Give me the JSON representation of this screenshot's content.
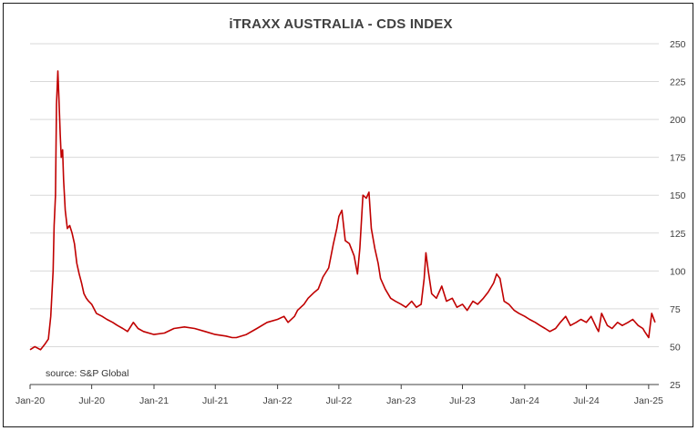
{
  "chart_data": {
    "type": "line",
    "title": "iTRAXX AUSTRALIA - CDS INDEX",
    "annotation": "source: S&P Global",
    "ylim": [
      25,
      250
    ],
    "yticks": [
      25,
      50,
      75,
      100,
      125,
      150,
      175,
      200,
      225,
      250
    ],
    "y_axis_position": "right",
    "grid": "horizontal",
    "xlim": [
      "2020-01-01",
      "2025-01-31"
    ],
    "xticks": [
      {
        "date": "2020-01-01",
        "label": "Jan-20"
      },
      {
        "date": "2020-07-01",
        "label": "Jul-20"
      },
      {
        "date": "2021-01-01",
        "label": "Jan-21"
      },
      {
        "date": "2021-07-01",
        "label": "Jul-21"
      },
      {
        "date": "2022-01-01",
        "label": "Jan-22"
      },
      {
        "date": "2022-07-01",
        "label": "Jul-22"
      },
      {
        "date": "2023-01-01",
        "label": "Jan-23"
      },
      {
        "date": "2023-07-01",
        "label": "Jul-23"
      },
      {
        "date": "2024-01-01",
        "label": "Jan-24"
      },
      {
        "date": "2024-07-01",
        "label": "Jul-24"
      },
      {
        "date": "2025-01-01",
        "label": "Jan-25"
      }
    ],
    "colors": {
      "line": "#c00000",
      "grid": "#d9d9d9",
      "axis": "#404040"
    },
    "series": [
      {
        "x": [
          "2020-01-01",
          "2020-01-15",
          "2020-02-01",
          "2020-02-15",
          "2020-02-24",
          "2020-03-02",
          "2020-03-09",
          "2020-03-12",
          "2020-03-16",
          "2020-03-19",
          "2020-03-23",
          "2020-03-26",
          "2020-03-30",
          "2020-04-02",
          "2020-04-06",
          "2020-04-09",
          "2020-04-14",
          "2020-04-20",
          "2020-04-27",
          "2020-05-04",
          "2020-05-11",
          "2020-05-18",
          "2020-05-25",
          "2020-06-01",
          "2020-06-08",
          "2020-06-15",
          "2020-06-22",
          "2020-07-01",
          "2020-07-15",
          "2020-08-01",
          "2020-08-15",
          "2020-09-01",
          "2020-09-15",
          "2020-10-01",
          "2020-10-15",
          "2020-11-01",
          "2020-11-15",
          "2020-12-01",
          "2021-01-01",
          "2021-02-01",
          "2021-03-01",
          "2021-04-01",
          "2021-05-01",
          "2021-06-01",
          "2021-07-01",
          "2021-08-01",
          "2021-08-20",
          "2021-09-01",
          "2021-10-01",
          "2021-11-01",
          "2021-12-01",
          "2022-01-01",
          "2022-01-20",
          "2022-02-01",
          "2022-02-20",
          "2022-03-01",
          "2022-03-20",
          "2022-04-01",
          "2022-04-20",
          "2022-05-01",
          "2022-05-15",
          "2022-06-01",
          "2022-06-15",
          "2022-06-25",
          "2022-07-01",
          "2022-07-10",
          "2022-07-20",
          "2022-08-01",
          "2022-08-15",
          "2022-08-25",
          "2022-09-01",
          "2022-09-10",
          "2022-09-20",
          "2022-09-28",
          "2022-10-05",
          "2022-10-15",
          "2022-10-25",
          "2022-11-01",
          "2022-11-15",
          "2022-12-01",
          "2022-12-15",
          "2023-01-01",
          "2023-01-15",
          "2023-02-01",
          "2023-02-15",
          "2023-03-01",
          "2023-03-10",
          "2023-03-15",
          "2023-03-22",
          "2023-04-01",
          "2023-04-15",
          "2023-05-01",
          "2023-05-15",
          "2023-06-01",
          "2023-06-15",
          "2023-07-01",
          "2023-07-15",
          "2023-08-01",
          "2023-08-15",
          "2023-09-01",
          "2023-09-15",
          "2023-10-01",
          "2023-10-10",
          "2023-10-20",
          "2023-11-01",
          "2023-11-15",
          "2023-12-01",
          "2023-12-15",
          "2024-01-01",
          "2024-01-15",
          "2024-02-01",
          "2024-02-15",
          "2024-03-01",
          "2024-03-15",
          "2024-04-01",
          "2024-04-15",
          "2024-05-01",
          "2024-05-15",
          "2024-06-01",
          "2024-06-15",
          "2024-07-01",
          "2024-07-15",
          "2024-08-01",
          "2024-08-06",
          "2024-08-15",
          "2024-09-01",
          "2024-09-15",
          "2024-10-01",
          "2024-10-15",
          "2024-11-01",
          "2024-11-15",
          "2024-12-01",
          "2024-12-15",
          "2024-12-20",
          "2025-01-01",
          "2025-01-10",
          "2025-01-20"
        ],
        "y": [
          48,
          50,
          48,
          52,
          55,
          70,
          100,
          130,
          150,
          210,
          232,
          215,
          190,
          175,
          180,
          160,
          140,
          128,
          130,
          125,
          118,
          105,
          98,
          92,
          85,
          82,
          80,
          78,
          72,
          70,
          68,
          66,
          64,
          62,
          60,
          66,
          62,
          60,
          58,
          59,
          62,
          63,
          62,
          60,
          58,
          57,
          56,
          56,
          58,
          62,
          66,
          68,
          70,
          66,
          70,
          74,
          78,
          82,
          86,
          88,
          96,
          102,
          118,
          128,
          136,
          140,
          120,
          118,
          110,
          98,
          115,
          150,
          148,
          152,
          128,
          115,
          105,
          95,
          88,
          82,
          80,
          78,
          76,
          80,
          76,
          78,
          95,
          112,
          100,
          85,
          82,
          90,
          80,
          82,
          76,
          78,
          74,
          80,
          78,
          82,
          86,
          92,
          98,
          95,
          80,
          78,
          74,
          72,
          70,
          68,
          66,
          64,
          62,
          60,
          62,
          66,
          70,
          64,
          66,
          68,
          66,
          70,
          62,
          60,
          72,
          64,
          62,
          66,
          64,
          66,
          68,
          64,
          62,
          60,
          56,
          72,
          66
        ]
      }
    ]
  }
}
